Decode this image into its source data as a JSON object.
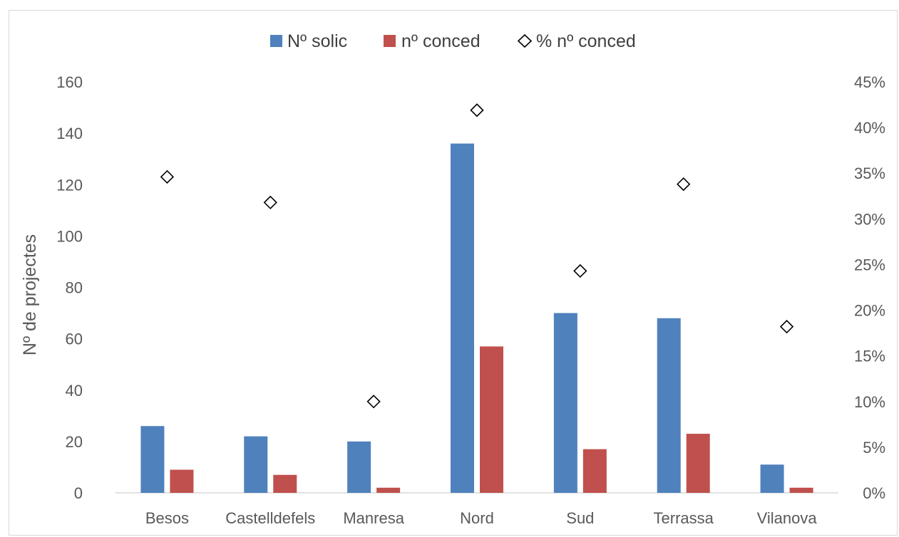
{
  "chart_data": {
    "type": "bar",
    "categories": [
      "Besos",
      "Castelldefels",
      "Manresa",
      "Nord",
      "Sud",
      "Terrassa",
      "Vilanova"
    ],
    "series": [
      {
        "name": "Nº solic",
        "type": "bar",
        "axis": "left",
        "color": "#4f81bd",
        "values": [
          26,
          22,
          20,
          136,
          70,
          68,
          11
        ]
      },
      {
        "name": "nº conced",
        "type": "bar",
        "axis": "left",
        "color": "#c0504d",
        "values": [
          9,
          7,
          2,
          57,
          17,
          23,
          2
        ]
      },
      {
        "name": "% nº conced",
        "type": "scatter",
        "axis": "right",
        "marker": "diamond-open",
        "color": "#000000",
        "values": [
          0.346,
          0.318,
          0.1,
          0.419,
          0.243,
          0.338,
          0.182
        ]
      }
    ],
    "ylabel": "Nº de projectes",
    "ylim": [
      0,
      160
    ],
    "y_ticks": [
      "0",
      "20",
      "40",
      "60",
      "80",
      "100",
      "120",
      "140",
      "160"
    ],
    "y2lim": [
      0,
      0.45
    ],
    "y2_ticks": [
      "0%",
      "5%",
      "10%",
      "15%",
      "20%",
      "25%",
      "30%",
      "35%",
      "40%",
      "45%"
    ],
    "legend": "top",
    "grid": false
  }
}
